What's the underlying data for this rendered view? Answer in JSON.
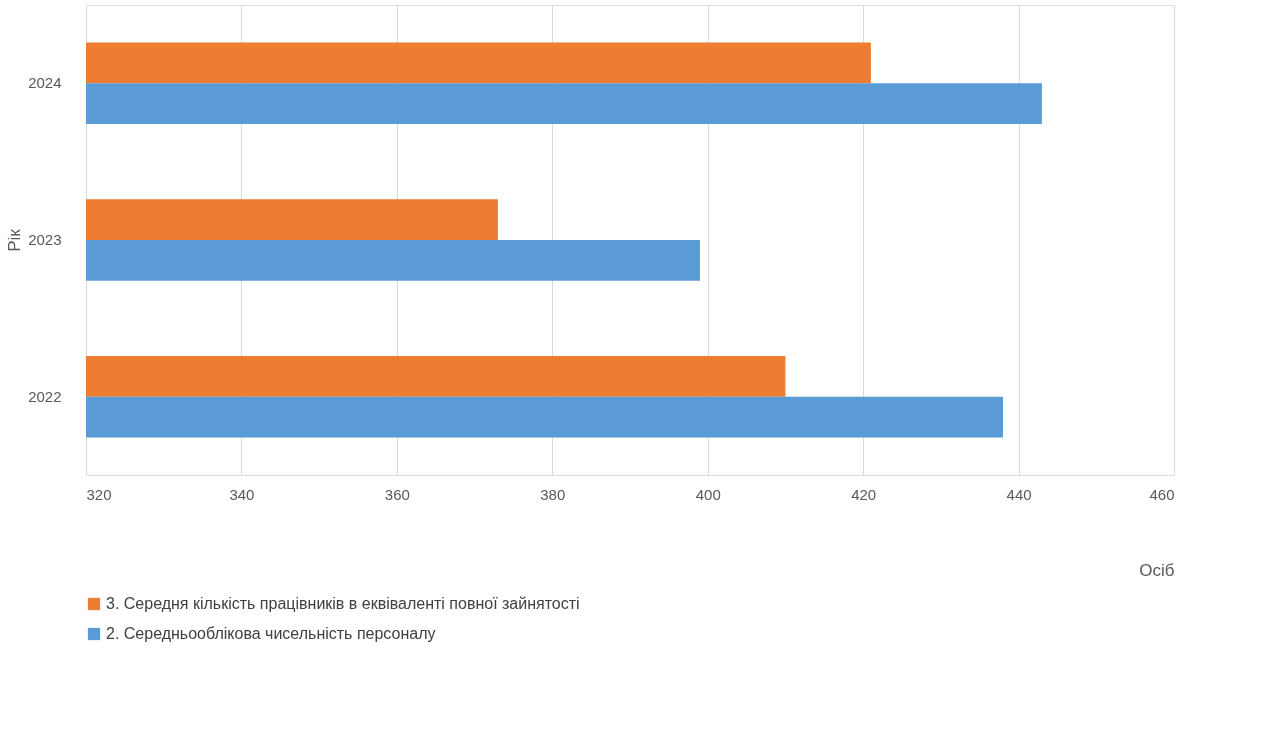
{
  "chart_data": {
    "type": "bar",
    "orientation": "horizontal",
    "categories": [
      "2024",
      "2023",
      "2022"
    ],
    "xlabel": "Осіб",
    "ylabel": "Рік",
    "xlim": [
      320,
      460
    ],
    "xticks": [
      320,
      340,
      360,
      380,
      400,
      420,
      440,
      460
    ],
    "grid": "x",
    "legend": "bottom",
    "series": [
      {
        "name": "3. Середня кількість працівників в еквіваленті повної зайнятості",
        "color": "#ed7d31",
        "values": [
          421,
          373,
          410
        ]
      },
      {
        "name": "2. Середньооблікова чисельність персоналу",
        "color": "#5b9bd5",
        "values": [
          443,
          399,
          438
        ]
      }
    ]
  }
}
